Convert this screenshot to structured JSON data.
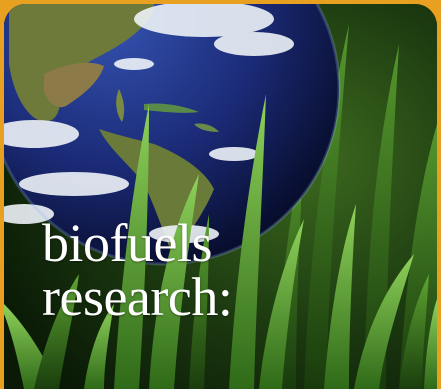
{
  "headline": {
    "line1": "biofuels",
    "line2": "research:"
  },
  "colors": {
    "frame": "#e8a020",
    "ocean": "#1c2f7a",
    "grass": "#4f9a2a",
    "background": "#10280b",
    "text": "#ffffff"
  },
  "image": {
    "subjects": [
      "earth-globe",
      "grass-blades"
    ]
  }
}
